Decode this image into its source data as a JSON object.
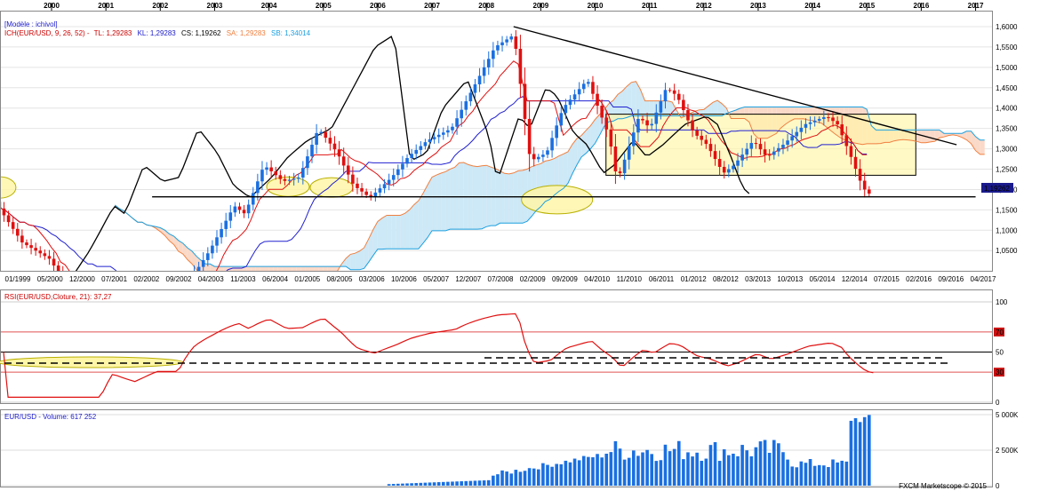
{
  "chart_data": [
    {
      "type": "candlestick",
      "panel": "price",
      "model_label": "[Modèle : ichivol]",
      "legend": {
        "ich": {
          "text": "ICH(EUR/USD, 9, 26, 52) -",
          "color": "#cc0000"
        },
        "tl": {
          "text": "TL: 1,29283",
          "color": "#cc0000"
        },
        "kl": {
          "text": "KL: 1,29283",
          "color": "#1a1acc"
        },
        "cs": {
          "text": "CS: 1,19262",
          "color": "#000000"
        },
        "sa": {
          "text": "SA: 1,29283",
          "color": "#f08040"
        },
        "sb": {
          "text": "SB: 1,34014",
          "color": "#1ca0e0"
        }
      },
      "year_labels": [
        "2000",
        "2001",
        "2002",
        "2003",
        "2004",
        "2005",
        "2006",
        "2007",
        "2008",
        "2009",
        "2010",
        "2011",
        "2012",
        "2013",
        "2014",
        "2015",
        "2016",
        "2017"
      ],
      "date_labels": [
        "01/1999",
        "05/2000",
        "12/2000",
        "07/2001",
        "02/2002",
        "09/2002",
        "04/2003",
        "11/2003",
        "06/2004",
        "01/2005",
        "08/2005",
        "03/2006",
        "10/2006",
        "05/2007",
        "12/2007",
        "07/2008",
        "02/2009",
        "09/2009",
        "04/2010",
        "11/2010",
        "06/2011",
        "01/2012",
        "08/2012",
        "03/2013",
        "10/2013",
        "05/2014",
        "12/2014",
        "07/2015",
        "02/2016",
        "09/2016",
        "04/2017"
      ],
      "y_ticks": [
        "1,6000",
        "1,5500",
        "1,5000",
        "1,4500",
        "1,4000",
        "1,3500",
        "1,3000",
        "1,2500",
        "1,2000",
        "1,1500",
        "1,1000",
        "1,0500"
      ],
      "ylim": [
        1.01,
        1.62
      ],
      "last_price": "1,19262",
      "colors": {
        "up": "#1a6fe0",
        "down": "#e01010",
        "tenkan": "#e01010",
        "kijun": "#2020d0",
        "chikou": "#000000",
        "senkou_a": "#f08040",
        "senkou_b": "#1ca0e0",
        "cloud_bull": "#cde8f6",
        "cloud_bear": "#fbd9c8",
        "highlight": "#fff6a8"
      }
    },
    {
      "type": "line",
      "panel": "rsi",
      "title": "RSI(EUR/USD,Cloture, 21): 37,27",
      "title_color": "#cc0000",
      "y_ticks": [
        "100",
        "70",
        "50",
        "30",
        "0"
      ],
      "ylim": [
        0,
        100
      ],
      "last_value": 37.27,
      "color": "#e01010"
    },
    {
      "type": "bar",
      "panel": "volume",
      "title": "EUR/USD - Volume: 617 252",
      "title_color": "#1a1acc",
      "y_ticks": [
        "5 000K",
        "2 500K",
        "0"
      ],
      "ylim": [
        0,
        5000000
      ],
      "color": "#1a6fe0"
    }
  ],
  "footer": {
    "copyright": "FXCM Marketscope © 2015"
  }
}
